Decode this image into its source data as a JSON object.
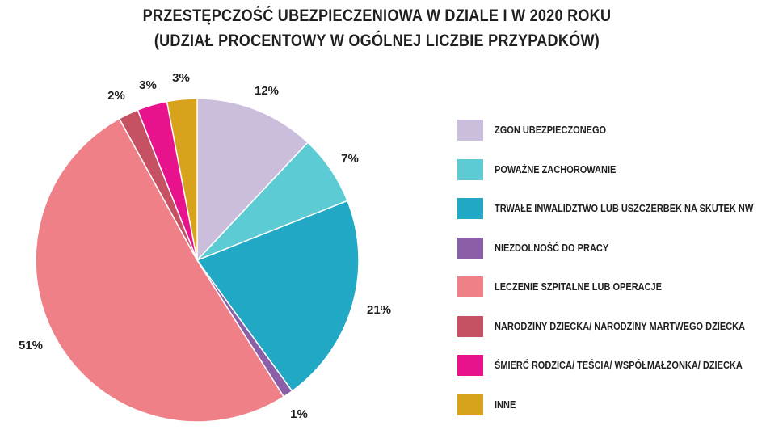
{
  "title": {
    "line1": "PRZESTĘPCZOŚĆ UBEZPIECZENIOWA W DZIALE I W 2020 ROKU",
    "line2": "(UDZIAŁ PROCENTOWY W OGÓLNEJ LICZBIE PRZYPADKÓW)"
  },
  "chart_data": {
    "type": "pie",
    "title": "PRZESTĘPCZOŚĆ UBEZPIECZENIOWA W DZIALE I W 2020 ROKU (UDZIAŁ PROCENTOWY W OGÓLNEJ LICZBIE PRZYPADKÓW)",
    "legend_position": "right",
    "slices": [
      {
        "label": "ZGON UBEZPIECZONEGO",
        "value": 12,
        "display": "12%",
        "color": "#cbbedc"
      },
      {
        "label": "POWAŻNE ZACHOROWANIE",
        "value": 7,
        "display": "7%",
        "color": "#5ccbd4"
      },
      {
        "label": "TRWAŁE INWALIDZTWO LUB USZCZERBEK NA SKUTEK NW",
        "value": 21,
        "display": "21%",
        "color": "#21a8c5"
      },
      {
        "label": "NIEZDOLNOŚĆ DO PRACY",
        "value": 1,
        "display": "1%",
        "color": "#8a5fa8"
      },
      {
        "label": "LECZENIE SZPITALNE LUB OPERACJE",
        "value": 51,
        "display": "51%",
        "color": "#f08088"
      },
      {
        "label": "NARODZINY DZIECKA/ NARODZINY MARTWEGO DZIECKA",
        "value": 2,
        "display": "2%",
        "color": "#c65162"
      },
      {
        "label": "ŚMIERĆ RODZICA/ TEŚCIA/ WSPÓŁMAŁŻONKA/ DZIECKA",
        "value": 3,
        "display": "3%",
        "color": "#e8128c"
      },
      {
        "label": "INNE",
        "value": 3,
        "display": "3%",
        "color": "#d8a31c"
      }
    ]
  }
}
